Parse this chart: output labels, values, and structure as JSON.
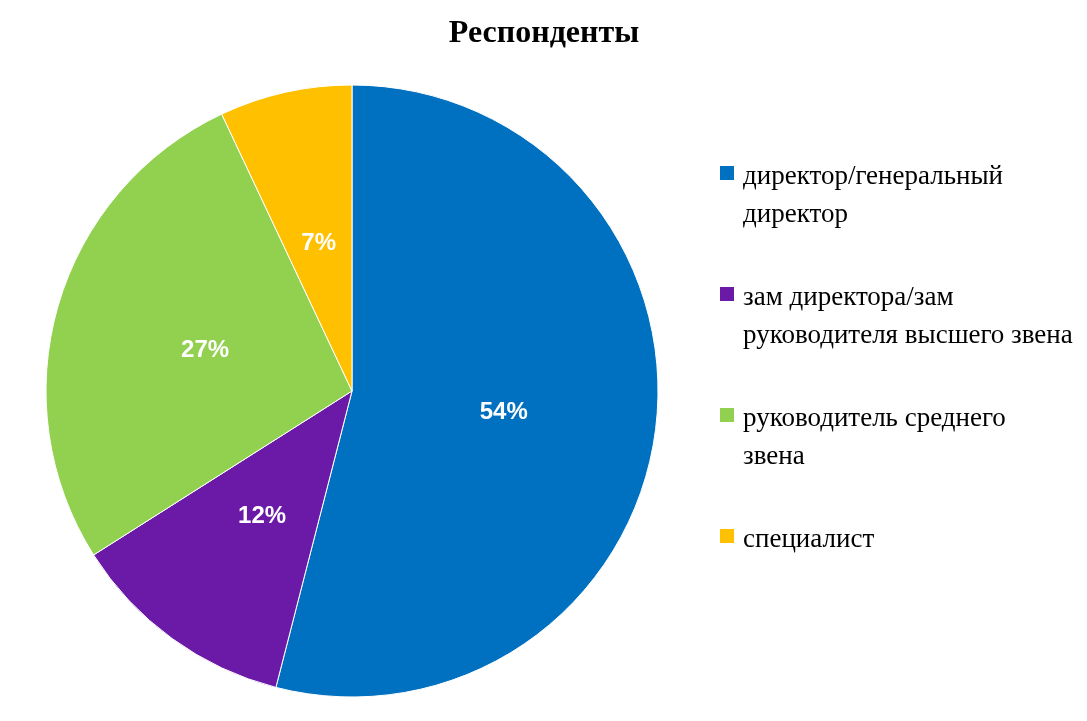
{
  "chart_data": {
    "type": "pie",
    "title": "Респонденты",
    "categories": [
      "директор/генеральный директор",
      "зам директора/зам руководителя высшего звена",
      "руководитель среднего звена",
      "специалист"
    ],
    "values": [
      54,
      12,
      27,
      7
    ],
    "colors": [
      "#0070c0",
      "#6a1aa6",
      "#92d050",
      "#ffc000"
    ],
    "value_labels": [
      "54%",
      "12%",
      "27%",
      "7%"
    ],
    "legend": "right"
  }
}
